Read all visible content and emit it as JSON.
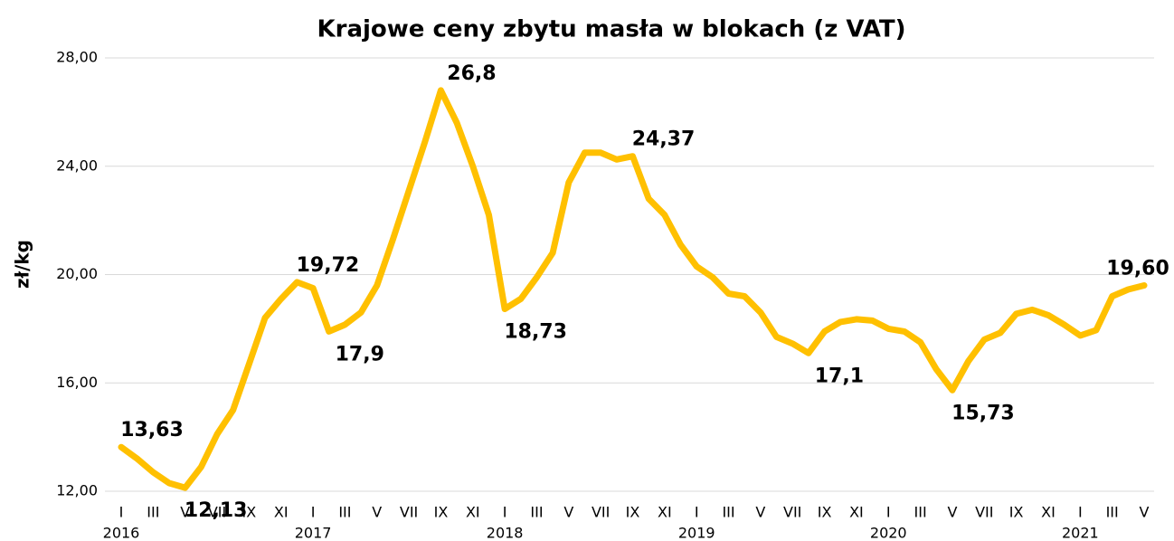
{
  "chart_data": {
    "type": "line",
    "title": "Krajowe ceny zbytu masła w blokach (z VAT)",
    "y_label": "zł/kg",
    "categories": [
      "I",
      null,
      "III",
      null,
      "V",
      null,
      "VII",
      null,
      "IX",
      null,
      "XI",
      null,
      "I",
      null,
      "III",
      null,
      "V",
      null,
      "VII",
      null,
      "IX",
      null,
      "XI",
      null,
      "I",
      null,
      "III",
      null,
      "V",
      null,
      "VII",
      null,
      "IX",
      null,
      "XI",
      null,
      "I",
      null,
      "III",
      null,
      "V",
      null,
      "VII",
      null,
      "IX",
      null,
      "XI",
      null,
      "I",
      null,
      "III",
      null,
      "V",
      null,
      "VII",
      null,
      "IX",
      null,
      "XI",
      null,
      "I",
      null,
      "III",
      null,
      "V"
    ],
    "years": [
      "2016",
      "2017",
      "2018",
      "2019",
      "2020",
      "2021"
    ],
    "series": [
      {
        "name": "zł/kg",
        "color": "#ffc000",
        "values": [
          13.63,
          13.2,
          12.7,
          12.3,
          12.13,
          12.9,
          14.1,
          15.0,
          16.7,
          18.4,
          19.1,
          19.72,
          19.5,
          17.9,
          18.15,
          18.6,
          19.6,
          21.3,
          23.1,
          24.9,
          26.8,
          25.6,
          24.0,
          22.2,
          18.73,
          19.1,
          19.9,
          20.8,
          23.4,
          24.5,
          24.5,
          24.25,
          24.37,
          22.8,
          22.2,
          21.1,
          20.3,
          19.9,
          19.3,
          19.2,
          18.6,
          17.7,
          17.45,
          17.1,
          17.9,
          18.25,
          18.35,
          18.3,
          18.0,
          17.9,
          17.5,
          16.5,
          15.73,
          16.8,
          17.6,
          17.85,
          18.55,
          18.7,
          18.5,
          18.15,
          17.75,
          17.95,
          19.2,
          19.45,
          19.6
        ],
        "value_labels": [
          "13,63",
          null,
          null,
          null,
          "12,13",
          null,
          null,
          null,
          null,
          null,
          null,
          "19,72",
          null,
          "17,9",
          null,
          null,
          null,
          null,
          null,
          null,
          "26,8",
          null,
          null,
          null,
          "18,73",
          null,
          null,
          null,
          null,
          null,
          null,
          null,
          "24,37",
          null,
          null,
          null,
          null,
          null,
          null,
          null,
          null,
          null,
          null,
          "17,1",
          null,
          null,
          null,
          null,
          null,
          null,
          null,
          null,
          "15,73",
          null,
          null,
          null,
          null,
          null,
          null,
          null,
          null,
          null,
          null,
          null,
          "19,60"
        ]
      }
    ],
    "ylim": [
      12,
      28
    ],
    "yticks": [
      {
        "value": 12,
        "label": "12,00"
      },
      {
        "value": 16,
        "label": "16,00"
      },
      {
        "value": 20,
        "label": "20,00"
      },
      {
        "value": 24,
        "label": "24,00"
      },
      {
        "value": 28,
        "label": "28,00"
      }
    ],
    "grid": true
  }
}
